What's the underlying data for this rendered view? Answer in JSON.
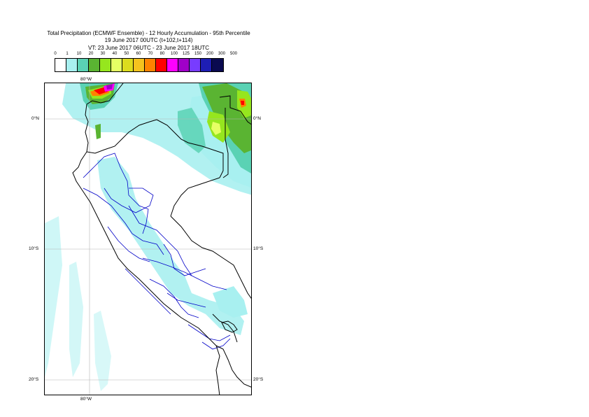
{
  "title": {
    "line1": "Total Precipitation (ECMWF Ensemble) - 12 Hourly Accumulation - 95th Percentile",
    "line2": "19 June 2017 00UTC (t+102,t+114)",
    "line3": "VT: 23 June 2017 06UTC - 23 June 2017 18UTC"
  },
  "legend": {
    "ticks": [
      "0",
      "1",
      "10",
      "20",
      "30",
      "40",
      "50",
      "60",
      "70",
      "80",
      "100",
      "125",
      "150",
      "200",
      "300",
      "500"
    ],
    "colors": [
      "#ffffff",
      "#a8f0f0",
      "#5ad2b4",
      "#5ab432",
      "#96e61e",
      "#e6ff64",
      "#dcdc1e",
      "#f5c31e",
      "#ff8200",
      "#ff0000",
      "#ff00ff",
      "#a000c8",
      "#783cff",
      "#1e1eb4",
      "#0a0a50"
    ]
  },
  "map": {
    "labels": {
      "lon_top": "80°W",
      "lon_bottom": "80°W",
      "lat_0_left": "0°N",
      "lat_0_right": "0°N",
      "lat_10_left": "10°S",
      "lat_10_right": "10°S",
      "lat_20_left": "20°S",
      "lat_20_right": "20°S"
    },
    "colors": {
      "coast": "#000000",
      "rivers": "#0000c8",
      "grid": "#b4b4b4",
      "light": "#a8f0f0",
      "mid": "#5ad2b4",
      "green": "#5ab432",
      "lime": "#96e61e",
      "yellow": "#e6ff64"
    }
  }
}
